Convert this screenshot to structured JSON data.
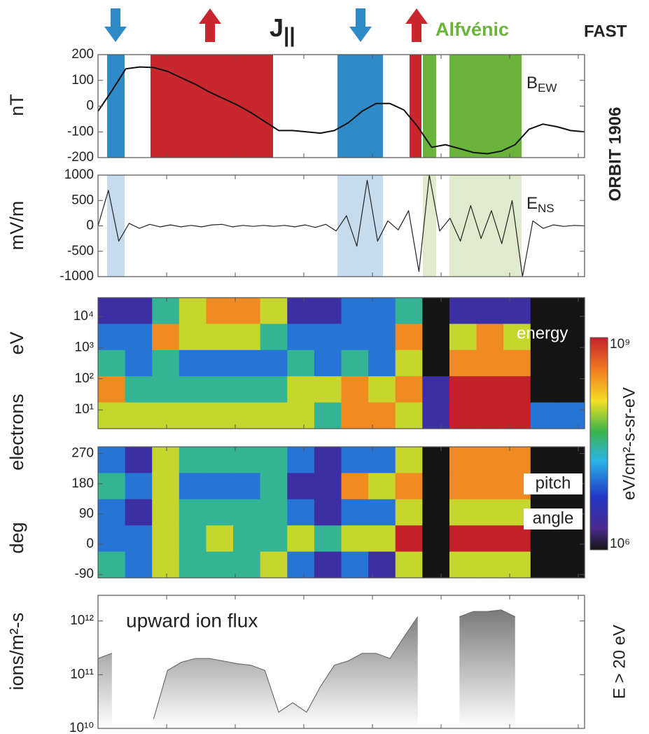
{
  "header": {
    "current_label": {
      "text": "J",
      "subscript": "||"
    },
    "alfvenic_label": "Alfvénic",
    "mission": "FAST",
    "orbit": "ORBIT 1906",
    "electrons_label": "electrons"
  },
  "chart_data": [
    {
      "type": "line",
      "ylabel": "nT",
      "panel_label": {
        "text": "B",
        "subscript": "EW"
      },
      "ylim": [
        -200,
        200
      ],
      "yticks": [
        -200,
        -100,
        0,
        100,
        200
      ],
      "series": [
        {
          "color": "#111111",
          "values": [
            -20,
            60,
            145,
            152,
            150,
            135,
            110,
            85,
            55,
            30,
            5,
            -25,
            -60,
            -95,
            -95,
            -100,
            -105,
            -95,
            -65,
            -20,
            10,
            10,
            -15,
            -80,
            -160,
            -150,
            -165,
            -180,
            -185,
            -175,
            -150,
            -90,
            -70,
            -80,
            -95,
            -100
          ]
        }
      ]
    },
    {
      "type": "line",
      "ylabel": "mV/m",
      "panel_label": {
        "text": "E",
        "subscript": "NS"
      },
      "ylim": [
        -1000,
        1000
      ],
      "yticks": [
        -1000,
        -500,
        0,
        500,
        1000
      ],
      "series": [
        {
          "color": "#222222",
          "values": [
            0,
            700,
            -300,
            50,
            -50,
            30,
            -20,
            20,
            -20,
            10,
            -20,
            20,
            30,
            -20,
            10,
            -10,
            10,
            -10,
            10,
            -20,
            20,
            -30,
            30,
            -100,
            200,
            -400,
            900,
            -300,
            100,
            -80,
            300,
            -900,
            1000,
            -100,
            150,
            -300,
            400,
            -250,
            300,
            -350,
            500,
            -1000,
            100,
            -50,
            20,
            -10,
            10,
            0
          ]
        }
      ]
    },
    {
      "type": "heatmap",
      "ylabel": "eV",
      "panel_label": "energy",
      "log_y": true,
      "ylim": [
        2.5,
        40000
      ],
      "yticks": [
        {
          "value": 10,
          "label": "10¹"
        },
        {
          "value": 100,
          "label": "10²"
        },
        {
          "value": 1000,
          "label": "10³"
        },
        {
          "value": 10000,
          "label": "10⁴"
        }
      ],
      "zlim": [
        1000000.0,
        1000000000.0
      ],
      "zticks": [
        {
          "value": 1000000.0,
          "label": "10⁶"
        },
        {
          "value": 1000000000.0,
          "label": "10⁹"
        }
      ],
      "zlabel": "eV/cm²-s-sr-eV",
      "z": [
        [
          3000000.0,
          10000000.0,
          30000000.0,
          300000000.0,
          100000000.0
        ],
        [
          3000000.0,
          10000000.0,
          10000000.0,
          30000000.0,
          100000000.0
        ],
        [
          30000000.0,
          300000000.0,
          30000000.0,
          30000000.0,
          100000000.0
        ],
        [
          100000000.0,
          100000000.0,
          10000000.0,
          30000000.0,
          100000000.0
        ],
        [
          300000000.0,
          100000000.0,
          10000000.0,
          30000000.0,
          100000000.0
        ],
        [
          300000000.0,
          100000000.0,
          10000000.0,
          30000000.0,
          100000000.0
        ],
        [
          100000000.0,
          30000000.0,
          10000000.0,
          30000000.0,
          100000000.0
        ],
        [
          3000000.0,
          10000000.0,
          30000000.0,
          100000000.0,
          100000000.0
        ],
        [
          3000000.0,
          10000000.0,
          10000000.0,
          100000000.0,
          30000000.0
        ],
        [
          10000000.0,
          10000000.0,
          30000000.0,
          300000000.0,
          300000000.0
        ],
        [
          10000000.0,
          10000000.0,
          10000000.0,
          100000000.0,
          300000000.0
        ],
        [
          30000000.0,
          300000000.0,
          100000000.0,
          300000000.0,
          100000000.0
        ],
        [
          1000000.0,
          1000000.0,
          1000000.0,
          3000000.0,
          3000000.0
        ],
        [
          3000000.0,
          100000000.0,
          300000000.0,
          1000000000.0,
          1000000000.0
        ],
        [
          3000000.0,
          300000000.0,
          300000000.0,
          1000000000.0,
          1000000000.0
        ],
        [
          3000000.0,
          100000000.0,
          300000000.0,
          1000000000.0,
          1000000000.0
        ],
        [
          1000000.0,
          1000000.0,
          1000000.0,
          1000000.0,
          10000000.0
        ],
        [
          1000000.0,
          1000000.0,
          1000000.0,
          1000000.0,
          10000000.0
        ]
      ]
    },
    {
      "type": "heatmap",
      "ylabel": "deg",
      "panel_label": [
        "pitch",
        "angle"
      ],
      "ylim": [
        -100,
        290
      ],
      "yticks": [
        -90,
        0,
        90,
        180,
        270
      ],
      "z": [
        [
          10000000.0,
          30000000.0,
          10000000.0,
          10000000.0,
          30000000.0
        ],
        [
          3000000.0,
          10000000.0,
          3000000.0,
          10000000.0,
          10000000.0
        ],
        [
          100000000.0,
          100000000.0,
          100000000.0,
          100000000.0,
          100000000.0
        ],
        [
          30000000.0,
          10000000.0,
          30000000.0,
          30000000.0,
          30000000.0
        ],
        [
          30000000.0,
          10000000.0,
          30000000.0,
          100000000.0,
          30000000.0
        ],
        [
          30000000.0,
          10000000.0,
          30000000.0,
          30000000.0,
          30000000.0
        ],
        [
          30000000.0,
          30000000.0,
          30000000.0,
          30000000.0,
          100000000.0
        ],
        [
          10000000.0,
          3000000.0,
          10000000.0,
          100000000.0,
          10000000.0
        ],
        [
          3000000.0,
          3000000.0,
          3000000.0,
          30000000.0,
          3000000.0
        ],
        [
          10000000.0,
          300000000.0,
          10000000.0,
          100000000.0,
          10000000.0
        ],
        [
          10000000.0,
          100000000.0,
          10000000.0,
          100000000.0,
          3000000.0
        ],
        [
          100000000.0,
          300000000.0,
          100000000.0,
          1000000000.0,
          100000000.0
        ],
        [
          1000000.0,
          1000000.0,
          1000000.0,
          1000000.0,
          1000000.0
        ],
        [
          300000000.0,
          300000000.0,
          100000000.0,
          1000000000.0,
          100000000.0
        ],
        [
          300000000.0,
          300000000.0,
          100000000.0,
          1000000000.0,
          100000000.0
        ],
        [
          300000000.0,
          300000000.0,
          100000000.0,
          1000000000.0,
          100000000.0
        ],
        [
          1000000.0,
          1000000.0,
          1000000.0,
          1000000.0,
          1000000.0
        ],
        [
          1000000.0,
          1000000.0,
          1000000.0,
          1000000.0,
          1000000.0
        ]
      ]
    },
    {
      "type": "area",
      "ylabel": "ions/m²-s",
      "panel_label": "upward ion flux",
      "right_label": "E > 20 eV",
      "log_y": true,
      "ylim": [
        10000000000.0,
        3000000000000.0
      ],
      "yticks": [
        {
          "value": 10000000000.0,
          "label": "10¹⁰"
        },
        {
          "value": 100000000000.0,
          "label": "10¹¹"
        },
        {
          "value": 1000000000000.0,
          "label": "10¹²"
        }
      ],
      "series": [
        {
          "color": "#6e6e6e",
          "values": [
            200000000000.0,
            250000000000.0,
            null,
            null,
            15000000000.0,
            120000000000.0,
            170000000000.0,
            200000000000.0,
            200000000000.0,
            180000000000.0,
            160000000000.0,
            150000000000.0,
            120000000000.0,
            20000000000.0,
            30000000000.0,
            20000000000.0,
            60000000000.0,
            150000000000.0,
            180000000000.0,
            250000000000.0,
            250000000000.0,
            200000000000.0,
            500000000000.0,
            1200000000000.0,
            null,
            null,
            1200000000000.0,
            1500000000000.0,
            1500000000000.0,
            1600000000000.0,
            1200000000000.0,
            null,
            null,
            null,
            null,
            null
          ]
        }
      ]
    }
  ]
}
